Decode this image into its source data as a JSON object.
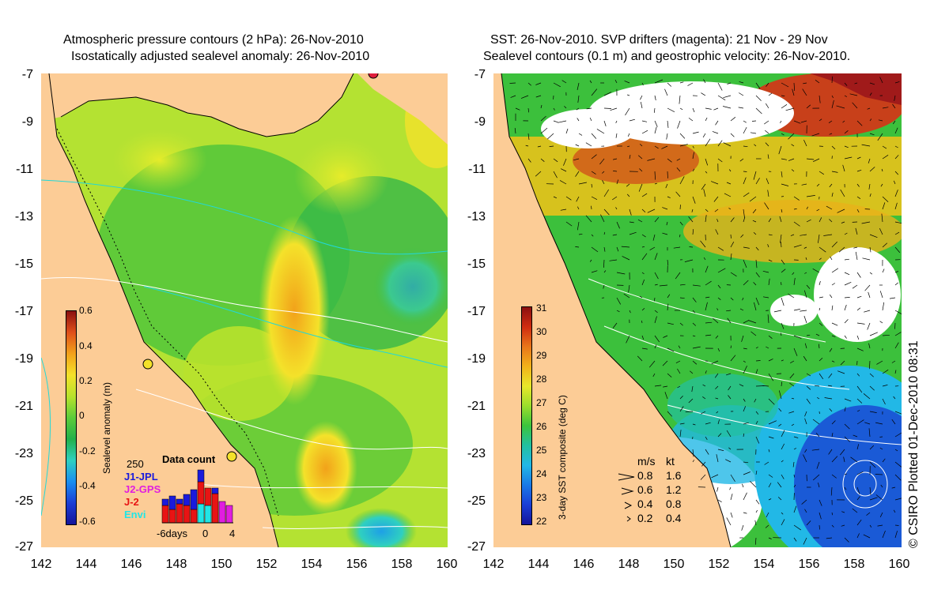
{
  "left_panel": {
    "title_line1": "Atmospheric pressure contours (2 hPa): 26-Nov-2010",
    "title_line2": "Isostatically adjusted sealevel anomaly: 26-Nov-2010",
    "colorbar": {
      "label": "Sealevel anomaly (m)",
      "ticks": [
        "0.6",
        "0.4",
        "0.2",
        "0",
        "-0.2",
        "-0.4",
        "-0.6"
      ],
      "colors": [
        "#8b1010",
        "#e0501a",
        "#f2a21a",
        "#f4e22a",
        "#b8e22c",
        "#5ccc3a",
        "#22b04a",
        "#2fd0c0",
        "#1a8ef0",
        "#1b3ed6",
        "#14149a"
      ]
    },
    "data_count": {
      "title": "Data count",
      "max_label": "250",
      "axis_labels": [
        "-6days",
        "0",
        "4"
      ],
      "missions": [
        {
          "name": "J1-JPL",
          "color": "#1a1adc"
        },
        {
          "name": "J2-GPS",
          "color": "#e01ee0"
        },
        {
          "name": "J-2",
          "color": "#e81414"
        },
        {
          "name": "Envi",
          "color": "#21e6e6"
        }
      ]
    }
  },
  "right_panel": {
    "title_line1": "SST: 26-Nov-2010. SVP drifters (magenta): 21 Nov - 29 Nov",
    "title_line2": "Sealevel contours (0.1 m) and geostrophic velocity: 26-Nov-2010.",
    "colorbar": {
      "label": "3-day SST composite (deg C)",
      "ticks": [
        "31",
        "30",
        "29",
        "28",
        "27",
        "26",
        "25",
        "24",
        "23",
        "22"
      ],
      "colors": [
        "#8b1010",
        "#d02c10",
        "#e8761a",
        "#f2b21a",
        "#e8e82a",
        "#9ade2c",
        "#3cc43c",
        "#22c0a0",
        "#22b8e6",
        "#1a7ae6",
        "#1a3ed6",
        "#14149a"
      ]
    },
    "velocity_key": {
      "header_ms": "m/s",
      "header_kt": "kt",
      "rows": [
        {
          "ms": "0.8",
          "kt": "1.6"
        },
        {
          "ms": "0.6",
          "kt": "1.2"
        },
        {
          "ms": "0.4",
          "kt": "0.8"
        },
        {
          "ms": "0.2",
          "kt": "0.4"
        }
      ]
    }
  },
  "axes": {
    "lat_ticks": [
      "-7",
      "-9",
      "-11",
      "-13",
      "-15",
      "-17",
      "-19",
      "-21",
      "-23",
      "-25",
      "-27"
    ],
    "lon_ticks": [
      "142",
      "144",
      "146",
      "148",
      "150",
      "152",
      "154",
      "156",
      "158",
      "160"
    ]
  },
  "credit": "© CSIRO Plotted 01-Dec-2010 08:31",
  "colors": {
    "land": "#fccc96",
    "ocean_green": "#3cc03c",
    "ocean_yellow": "#c8e630",
    "coast": "#000000",
    "contour": "#ffffff",
    "depth_contour": "#22d8d8"
  }
}
